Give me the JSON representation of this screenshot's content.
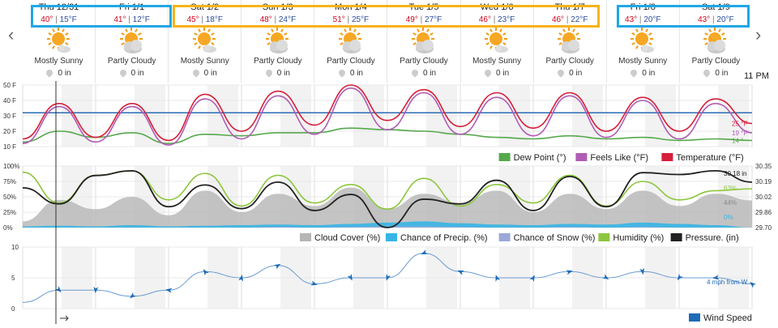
{
  "nav": {
    "prev_icon": "chevron-left-icon",
    "next_icon": "chevron-right-icon",
    "prev": "‹",
    "next": "›"
  },
  "time_label": "11 PM",
  "days": [
    {
      "name": "Thu 12/31",
      "high": "40°",
      "low": "15°F",
      "condition": "Mostly Sunny",
      "precip": "0 in",
      "icon": "mostly-sunny-icon"
    },
    {
      "name": "Fri 1/1",
      "high": "41°",
      "low": "12°F",
      "condition": "Partly Cloudy",
      "precip": "0 in",
      "icon": "partly-cloudy-icon"
    },
    {
      "name": "Sat 1/2",
      "high": "45°",
      "low": "18°F",
      "condition": "Mostly Sunny",
      "precip": "0 in",
      "icon": "mostly-sunny-icon"
    },
    {
      "name": "Sun 1/3",
      "high": "48°",
      "low": "24°F",
      "condition": "Partly Cloudy",
      "precip": "0 in",
      "icon": "partly-cloudy-icon"
    },
    {
      "name": "Mon 1/4",
      "high": "51°",
      "low": "25°F",
      "condition": "Partly Cloudy",
      "precip": "0 in",
      "icon": "partly-cloudy-icon"
    },
    {
      "name": "Tue 1/5",
      "high": "49°",
      "low": "27°F",
      "condition": "Partly Cloudy",
      "precip": "0 in",
      "icon": "partly-cloudy-icon"
    },
    {
      "name": "Wed 1/6",
      "high": "46°",
      "low": "23°F",
      "condition": "Mostly Sunny",
      "precip": "0 in",
      "icon": "mostly-sunny-icon"
    },
    {
      "name": "Thu 1/7",
      "high": "46°",
      "low": "22°F",
      "condition": "Partly Cloudy",
      "precip": "0 in",
      "icon": "partly-cloudy-icon"
    },
    {
      "name": "Fri 1/8",
      "high": "43°",
      "low": "20°F",
      "condition": "Mostly Sunny",
      "precip": "0 in",
      "icon": "mostly-sunny-icon"
    },
    {
      "name": "Sat 1/9",
      "high": "43°",
      "low": "20°F",
      "condition": "Partly Cloudy",
      "precip": "0 in",
      "icon": "partly-cloudy-icon"
    }
  ],
  "colors": {
    "highlight_blue": "#20a7e4",
    "highlight_orange": "#f6b319",
    "temperature": "#d61f3a",
    "feels_like": "#b05cb5",
    "dew_point": "#55a84c",
    "humidity": "#8cc63e",
    "pressure": "#222222",
    "cloud_cover": "#b5b5b5",
    "precip_chance": "#36b5e5",
    "snow_chance": "#9aa8d9",
    "wind": "#1e6bb8",
    "freezing_line": "#2a6bb4"
  },
  "chart_data": [
    {
      "type": "line",
      "panel": "temperature",
      "y_ticks": [
        "50 F",
        "40 F",
        "30 F",
        "20 F",
        "10 F"
      ],
      "ylim": [
        10,
        50
      ],
      "reference_line_value": 32,
      "x_hours": [
        0,
        12,
        24,
        36,
        48,
        60,
        72,
        84,
        96,
        108,
        120,
        132,
        144,
        156,
        168,
        180,
        192,
        204,
        216,
        228,
        240
      ],
      "series": [
        {
          "name": "Temperature (°F)",
          "values": [
            15,
            38,
            16,
            38,
            14,
            44,
            20,
            46,
            24,
            50,
            27,
            47,
            23,
            45,
            22,
            45,
            20,
            42,
            20,
            41,
            25
          ]
        },
        {
          "name": "Feels Like (°F)",
          "values": [
            12,
            36,
            13,
            36,
            11,
            41,
            15,
            43,
            18,
            48,
            21,
            45,
            18,
            42,
            17,
            43,
            16,
            40,
            15,
            38,
            19
          ]
        },
        {
          "name": "Dew Point (°)",
          "values": [
            13,
            20,
            16,
            19,
            12,
            18,
            17,
            19,
            19,
            22,
            21,
            20,
            18,
            16,
            15,
            17,
            15,
            16,
            14,
            15,
            14
          ]
        }
      ],
      "end_labels": [
        "25 °F",
        "19 °F",
        "14 °"
      ],
      "legend": [
        "Dew Point (°)",
        "Feels Like (°F)",
        "Temperature (°F)"
      ]
    },
    {
      "type": "line",
      "panel": "sky",
      "y_ticks_left": [
        "100%",
        "75%",
        "50%",
        "25%",
        "0%"
      ],
      "y_ticks_right": [
        "30.35",
        "30.19",
        "30.02",
        "29.86",
        "29.70"
      ],
      "ylim": [
        0,
        100
      ],
      "ylim_right": [
        29.7,
        30.35
      ],
      "x_hours": [
        0,
        12,
        24,
        36,
        48,
        60,
        72,
        84,
        96,
        108,
        120,
        132,
        144,
        156,
        168,
        180,
        192,
        204,
        216,
        228,
        240
      ],
      "series": [
        {
          "name": "Cloud Cover (%)",
          "values": [
            10,
            45,
            30,
            50,
            20,
            60,
            25,
            55,
            35,
            65,
            30,
            55,
            40,
            60,
            25,
            55,
            30,
            60,
            35,
            55,
            44
          ]
        },
        {
          "name": "Chance of Precip. (%)",
          "values": [
            2,
            3,
            2,
            4,
            2,
            3,
            4,
            5,
            4,
            6,
            8,
            10,
            7,
            5,
            4,
            6,
            5,
            8,
            6,
            4,
            0
          ]
        },
        {
          "name": "Chance of Snow (%)",
          "values": [
            0,
            0,
            0,
            0,
            0,
            0,
            0,
            1,
            0,
            1,
            2,
            2,
            1,
            0,
            0,
            1,
            0,
            1,
            0,
            0,
            0
          ]
        },
        {
          "name": "Humidity (%)",
          "values": [
            90,
            40,
            85,
            92,
            45,
            88,
            35,
            85,
            40,
            70,
            30,
            80,
            35,
            70,
            40,
            85,
            35,
            75,
            45,
            60,
            63
          ]
        },
        {
          "name": "Pressure. (in)",
          "values": [
            30.12,
            29.95,
            30.25,
            30.3,
            29.92,
            30.15,
            29.9,
            30.18,
            29.88,
            30.05,
            29.7,
            30.0,
            29.95,
            30.2,
            29.88,
            30.24,
            29.92,
            30.28,
            30.26,
            30.3,
            30.18
          ]
        }
      ],
      "end_labels": [
        "30.18 in",
        "63%",
        "44%",
        "0%"
      ],
      "legend": [
        "Cloud Cover (%)",
        "Chance of Precip. (%)",
        "Chance of Snow (%)",
        "Humidity (%)",
        "Pressure. (in)"
      ]
    },
    {
      "type": "line",
      "panel": "wind",
      "y_ticks": [
        "10",
        "5",
        "0"
      ],
      "ylim": [
        0,
        10
      ],
      "x_hours": [
        0,
        12,
        24,
        36,
        48,
        60,
        72,
        84,
        96,
        108,
        120,
        132,
        144,
        156,
        168,
        180,
        192,
        204,
        216,
        228,
        240
      ],
      "series": [
        {
          "name": "Wind Speed",
          "values": [
            1,
            3,
            3,
            2,
            3,
            6,
            5,
            7,
            4,
            5,
            5,
            9,
            6,
            5,
            5,
            6,
            5,
            6,
            5,
            5,
            4
          ]
        }
      ],
      "end_label": "4 mph from W",
      "legend": [
        "Wind Speed"
      ]
    }
  ]
}
